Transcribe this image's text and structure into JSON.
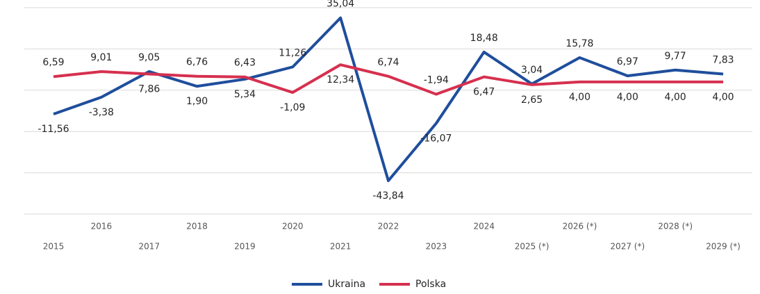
{
  "chart_data": {
    "type": "line",
    "categories": [
      "2015",
      "2016",
      "2017",
      "2018",
      "2019",
      "2020",
      "2021",
      "2022",
      "2023",
      "2024",
      "2025 (*)",
      "2026 (*)",
      "2027 (*)",
      "2028 (*)",
      "2029 (*)"
    ],
    "series": [
      {
        "name": "Ukraina",
        "color": "#1f4e9c",
        "values": [
          -11.56,
          -3.38,
          9.05,
          1.9,
          5.34,
          11.26,
          35.04,
          -43.84,
          -16.07,
          18.48,
          3.04,
          15.78,
          6.97,
          9.77,
          7.83
        ],
        "value_labels": [
          "-11,56",
          "-3,38",
          "9,05",
          "1,90",
          "5,34",
          "11,26",
          "35,04",
          "-43,84",
          "-16,07",
          "18,48",
          "3,04",
          "15,78",
          "6,97",
          "9,77",
          "7,83"
        ]
      },
      {
        "name": "Polska",
        "color": "#d6304f",
        "values": [
          6.59,
          9.01,
          7.86,
          6.76,
          6.43,
          -1.09,
          12.34,
          6.74,
          -1.94,
          6.47,
          2.65,
          4.0,
          4.0,
          4.0,
          4.0
        ],
        "value_labels": [
          "6,59",
          "9,01",
          "7,86",
          "6,76",
          "6,43",
          "-1,09",
          "12,34",
          "6,74",
          "-1,94",
          "6,47",
          "2,65",
          "4,00",
          "4,00",
          "4,00",
          "4,00"
        ]
      }
    ],
    "ylim": [
      -60,
      40
    ],
    "yticks": [
      -60,
      -40,
      -20,
      0,
      20,
      40
    ],
    "grid": true,
    "legend": "bottom"
  }
}
